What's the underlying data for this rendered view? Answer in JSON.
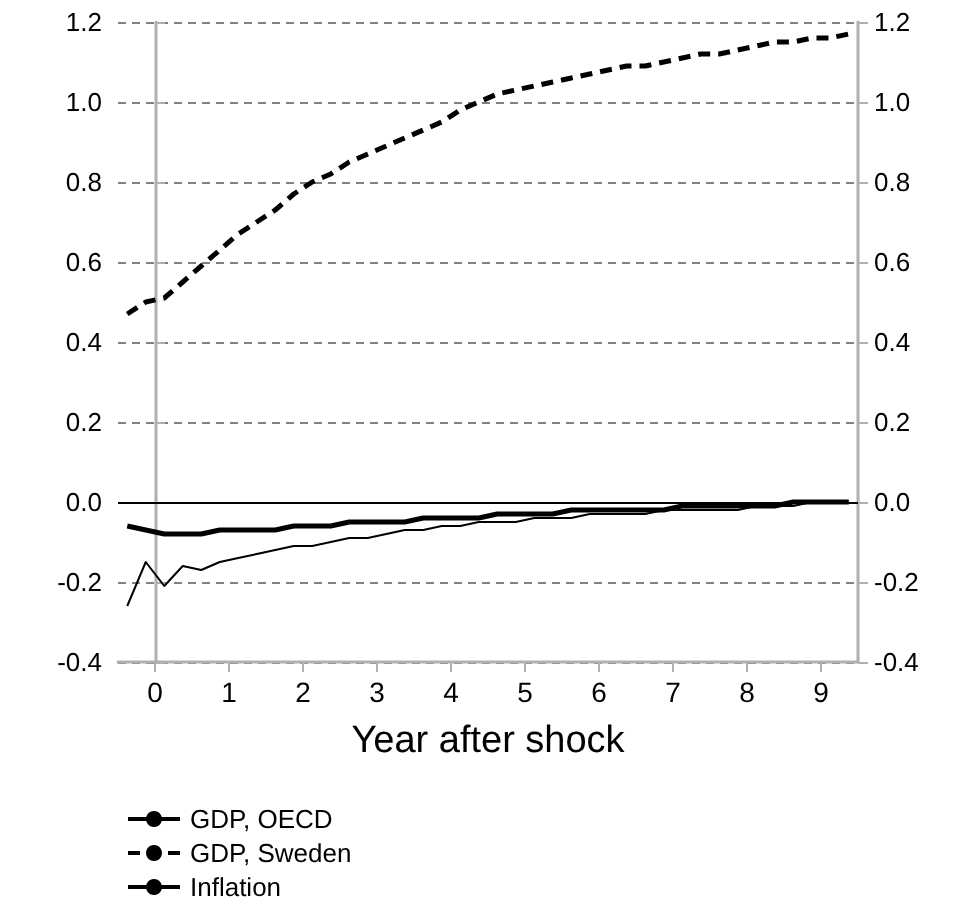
{
  "chart_data": {
    "type": "line",
    "xlabel": "Year after shock",
    "x": [
      -0.375,
      -0.125,
      0.125,
      0.375,
      0.625,
      0.875,
      1.125,
      1.375,
      1.625,
      1.875,
      2.125,
      2.375,
      2.625,
      2.875,
      3.125,
      3.375,
      3.625,
      3.875,
      4.125,
      4.375,
      4.625,
      4.875,
      5.125,
      5.375,
      5.625,
      5.875,
      6.125,
      6.375,
      6.625,
      6.875,
      7.125,
      7.375,
      7.625,
      7.875,
      8.125,
      8.375,
      8.625,
      8.875,
      9.125,
      9.375
    ],
    "xlim": [
      -0.5,
      9.5
    ],
    "xticks": [
      0,
      1,
      2,
      3,
      4,
      5,
      6,
      7,
      8,
      9
    ],
    "ylim": [
      -0.4,
      1.2
    ],
    "yticks": [
      {
        "value": -0.4,
        "label": "-0.4"
      },
      {
        "value": -0.2,
        "label": "-0.2"
      },
      {
        "value": 0,
        "label": "0.0"
      },
      {
        "value": 0.2,
        "label": "0.2"
      },
      {
        "value": 0.4,
        "label": "0.4"
      },
      {
        "value": 0.6,
        "label": "0.6"
      },
      {
        "value": 0.8,
        "label": "0.8"
      },
      {
        "value": 1,
        "label": "1.0"
      },
      {
        "value": 1.2,
        "label": "1.2"
      }
    ],
    "y2lim": [
      -0.4,
      1.2
    ],
    "y2ticks": [
      {
        "value": -0.4,
        "label": "-0.4"
      },
      {
        "value": -0.2,
        "label": "-0.2"
      },
      {
        "value": 0,
        "label": "0.0"
      },
      {
        "value": 0.2,
        "label": "0.2"
      },
      {
        "value": 0.4,
        "label": "0.4"
      },
      {
        "value": 0.6,
        "label": "0.6"
      },
      {
        "value": 0.8,
        "label": "0.8"
      },
      {
        "value": 1,
        "label": "1.0"
      },
      {
        "value": 1.2,
        "label": "1.2"
      }
    ],
    "grid": "y",
    "legend": "bottom",
    "marker": "none",
    "ref_lines": [
      {
        "axis": "y",
        "value": 0,
        "color": "#000000",
        "line_style": "solid"
      }
    ],
    "series": [
      {
        "name": "GDP, OECD",
        "color": "#000000",
        "line_style": "solid",
        "values": [
          -0.06,
          -0.07,
          -0.08,
          -0.08,
          -0.08,
          -0.07,
          -0.07,
          -0.07,
          -0.07,
          -0.06,
          -0.06,
          -0.06,
          -0.05,
          -0.05,
          -0.05,
          -0.05,
          -0.04,
          -0.04,
          -0.04,
          -0.04,
          -0.03,
          -0.03,
          -0.03,
          -0.03,
          -0.02,
          -0.02,
          -0.02,
          -0.02,
          -0.02,
          -0.02,
          -0.01,
          -0.01,
          -0.01,
          -0.01,
          -0.01,
          -0.01,
          0,
          0,
          0,
          0
        ]
      },
      {
        "name": "GDP, Sweden",
        "color": "#000000",
        "line_style": "dashed",
        "values": [
          0.47,
          0.5,
          0.51,
          0.55,
          0.59,
          0.63,
          0.67,
          0.7,
          0.73,
          0.77,
          0.8,
          0.82,
          0.85,
          0.87,
          0.89,
          0.91,
          0.93,
          0.95,
          0.98,
          1,
          1.02,
          1.03,
          1.04,
          1.05,
          1.06,
          1.07,
          1.08,
          1.09,
          1.09,
          1.1,
          1.11,
          1.12,
          1.12,
          1.13,
          1.14,
          1.15,
          1.15,
          1.16,
          1.16,
          1.17
        ]
      },
      {
        "name": "Inflation",
        "color": "#000000",
        "line_style": "solid",
        "values": [
          -0.26,
          -0.15,
          -0.21,
          -0.16,
          -0.17,
          -0.15,
          -0.14,
          -0.13,
          -0.12,
          -0.11,
          -0.11,
          -0.1,
          -0.09,
          -0.09,
          -0.08,
          -0.07,
          -0.07,
          -0.06,
          -0.06,
          -0.05,
          -0.05,
          -0.05,
          -0.04,
          -0.04,
          -0.04,
          -0.03,
          -0.03,
          -0.03,
          -0.03,
          -0.02,
          -0.02,
          -0.02,
          -0.02,
          -0.02,
          -0.01,
          -0.01,
          -0.01,
          0,
          0,
          0
        ]
      }
    ]
  }
}
